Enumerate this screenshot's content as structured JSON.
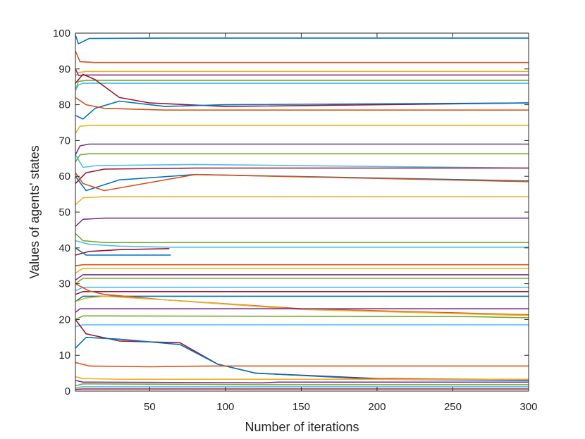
{
  "chart_data": {
    "type": "line",
    "title": "",
    "xlabel": "Number of iterations",
    "ylabel": "Values of agents' states",
    "xlim": [
      1,
      300
    ],
    "ylim": [
      0,
      100
    ],
    "x_ticks": [
      50,
      100,
      150,
      200,
      250,
      300
    ],
    "x_tick_labels": [
      "50",
      "100",
      "150",
      "200",
      "250",
      "300"
    ],
    "y_ticks": [
      0,
      10,
      20,
      30,
      40,
      50,
      60,
      70,
      80,
      90,
      100
    ],
    "y_tick_labels": [
      "0",
      "10",
      "20",
      "30",
      "40",
      "50",
      "60",
      "70",
      "80",
      "90",
      "100"
    ],
    "grid": false,
    "legend": "none",
    "colors": [
      "#0072BD",
      "#D95319",
      "#EDB120",
      "#7E2F8E",
      "#77AC30",
      "#4DBEEE",
      "#A2142F"
    ],
    "series": [
      {
        "x": [
          1,
          3,
          10,
          60,
          300
        ],
        "values": [
          99.5,
          97,
          98.5,
          98.6,
          98.6
        ]
      },
      {
        "x": [
          1,
          4,
          14,
          300
        ],
        "values": [
          95,
          92,
          91.8,
          91.8
        ]
      },
      {
        "x": [
          1,
          3,
          8,
          300
        ],
        "values": [
          88,
          89,
          89.3,
          89.3
        ]
      },
      {
        "x": [
          1,
          3,
          8,
          300
        ],
        "values": [
          90,
          88.2,
          88.3,
          88.3
        ]
      },
      {
        "x": [
          1,
          3,
          8,
          300
        ],
        "values": [
          84,
          86.5,
          86.8,
          86.8
        ]
      },
      {
        "x": [
          1,
          3,
          6,
          300
        ],
        "values": [
          84,
          85.5,
          86,
          86
        ]
      },
      {
        "x": [
          1,
          6,
          14,
          30,
          50,
          100,
          300
        ],
        "values": [
          86,
          88.5,
          87,
          82,
          80.5,
          79.5,
          80.5
        ]
      },
      {
        "x": [
          1,
          6,
          14,
          30,
          60,
          100,
          300
        ],
        "values": [
          77,
          76,
          79,
          81,
          79.5,
          80,
          80.5
        ]
      },
      {
        "x": [
          1,
          8,
          20,
          60,
          300
        ],
        "values": [
          82,
          80,
          79,
          78.5,
          78.5
        ]
      },
      {
        "x": [
          1,
          4,
          10,
          300
        ],
        "values": [
          72,
          74,
          74.2,
          74.2
        ]
      },
      {
        "x": [
          1,
          4,
          10,
          300
        ],
        "values": [
          66,
          68.5,
          69,
          69
        ]
      },
      {
        "x": [
          1,
          4,
          10,
          300
        ],
        "values": [
          64,
          66,
          66.3,
          66.3
        ]
      },
      {
        "x": [
          1,
          6,
          15,
          80,
          300
        ],
        "values": [
          66,
          62.5,
          63,
          63.3,
          62.3
        ]
      },
      {
        "x": [
          1,
          8,
          20,
          80,
          300
        ],
        "values": [
          58,
          61,
          62,
          62.3,
          62.3
        ]
      },
      {
        "x": [
          1,
          8,
          30,
          80,
          300
        ],
        "values": [
          60,
          56,
          59,
          60.5,
          58.7
        ]
      },
      {
        "x": [
          1,
          6,
          20,
          80,
          300
        ],
        "values": [
          61,
          58,
          56,
          60.5,
          58.5
        ]
      },
      {
        "x": [
          1,
          6,
          20,
          300
        ],
        "values": [
          52,
          54,
          54.3,
          54.3
        ]
      },
      {
        "x": [
          1,
          6,
          20,
          300
        ],
        "values": [
          46,
          48,
          48.3,
          48.3
        ]
      },
      {
        "x": [
          1,
          6,
          20,
          300
        ],
        "values": [
          44,
          42,
          41.5,
          41.5
        ]
      },
      {
        "x": [
          1,
          10,
          30,
          63,
          300
        ],
        "values": [
          42,
          41,
          40.5,
          40.2,
          40.2
        ]
      },
      {
        "x": [
          1,
          10,
          30,
          63
        ],
        "values": [
          38,
          39,
          39.5,
          39.8
        ]
      },
      {
        "x": [
          1,
          8,
          64
        ],
        "values": [
          40,
          38,
          38
        ]
      },
      {
        "x": [
          1,
          6,
          300
        ],
        "values": [
          35,
          35.3,
          35.3
        ]
      },
      {
        "x": [
          1,
          6,
          300
        ],
        "values": [
          33,
          34.3,
          34.3
        ]
      },
      {
        "x": [
          1,
          6,
          300
        ],
        "values": [
          31,
          32.5,
          32.5
        ]
      },
      {
        "x": [
          1,
          6,
          300
        ],
        "values": [
          30,
          31.5,
          31.5
        ]
      },
      {
        "x": [
          1,
          6,
          300
        ],
        "values": [
          28,
          29,
          29
        ]
      },
      {
        "x": [
          1,
          6,
          300
        ],
        "values": [
          27,
          27.8,
          27.8
        ]
      },
      {
        "x": [
          1,
          6,
          300
        ],
        "values": [
          25,
          26.5,
          26.5
        ]
      },
      {
        "x": [
          1,
          10,
          20,
          60,
          150,
          300
        ],
        "values": [
          30,
          28,
          27,
          25.5,
          23,
          21.3
        ]
      },
      {
        "x": [
          1,
          8,
          20,
          60,
          150,
          300
        ],
        "values": [
          25,
          26,
          26.5,
          25.5,
          22.8,
          21.1
        ]
      },
      {
        "x": [
          1,
          4,
          300
        ],
        "values": [
          22,
          23,
          23
        ]
      },
      {
        "x": [
          1,
          6,
          260,
          300
        ],
        "values": [
          20,
          21,
          20.8,
          20.5
        ]
      },
      {
        "x": [
          1,
          6,
          300
        ],
        "values": [
          18,
          18.5,
          18.5
        ]
      },
      {
        "x": [
          1,
          8,
          30,
          70,
          95,
          120,
          200,
          300
        ],
        "values": [
          20,
          16,
          14,
          13.5,
          7.5,
          5,
          3.5,
          3.2
        ]
      },
      {
        "x": [
          1,
          8,
          30,
          70,
          95,
          120,
          200,
          300
        ],
        "values": [
          12,
          15,
          14.5,
          13,
          7.5,
          5,
          3.3,
          3
        ]
      },
      {
        "x": [
          1,
          10,
          50,
          90,
          300
        ],
        "values": [
          8,
          7,
          6.8,
          7,
          7
        ]
      },
      {
        "x": [
          1,
          6,
          30,
          300
        ],
        "values": [
          4,
          3.5,
          3.3,
          3.3
        ]
      },
      {
        "x": [
          1,
          6,
          125,
          135,
          300
        ],
        "values": [
          3,
          2.5,
          2.3,
          2.5,
          2.5
        ]
      },
      {
        "x": [
          1,
          6,
          125,
          300
        ],
        "values": [
          1.5,
          2,
          1.8,
          1.8
        ]
      },
      {
        "x": [
          1,
          6,
          130,
          300
        ],
        "values": [
          1,
          1.2,
          1.2,
          1.2
        ]
      },
      {
        "x": [
          1,
          6,
          300
        ],
        "values": [
          0.5,
          0.6,
          0.6
        ]
      }
    ]
  }
}
